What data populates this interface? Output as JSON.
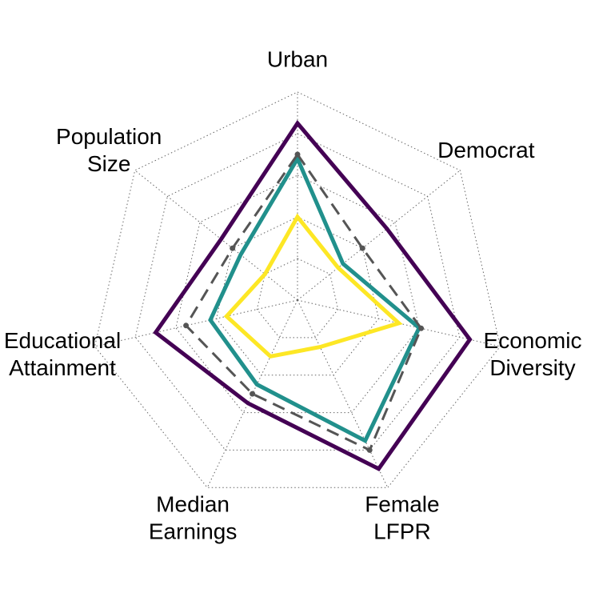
{
  "chart_data": {
    "type": "radar",
    "axes": [
      [
        "Urban"
      ],
      [
        "Democrat"
      ],
      [
        "Economic",
        "Diversity"
      ],
      [
        "Female",
        "LFPR"
      ],
      [
        "Median",
        "Earnings"
      ],
      [
        "Educational",
        "Attainment"
      ],
      [
        "Population",
        "Size"
      ]
    ],
    "grid_levels": 5,
    "grid": true,
    "scale_max": 1,
    "series": [
      {
        "values": [
          0.85,
          0.55,
          0.85,
          0.9,
          0.55,
          0.7,
          0.47
        ],
        "color": "#440154",
        "dash": false
      },
      {
        "values": [
          0.68,
          0.28,
          0.6,
          0.75,
          0.45,
          0.43,
          0.35
        ],
        "color": "#21908C",
        "dash": false
      },
      {
        "values": [
          0.7,
          0.4,
          0.61,
          0.8,
          0.5,
          0.55,
          0.4
        ],
        "color": "#555555",
        "dash": true
      },
      {
        "values": [
          0.4,
          0.25,
          0.5,
          0.25,
          0.3,
          0.35,
          0.2
        ],
        "color": "#FDE725",
        "dash": false
      }
    ]
  }
}
